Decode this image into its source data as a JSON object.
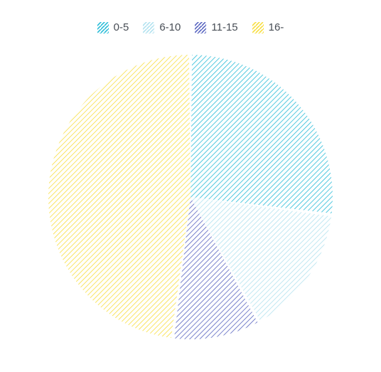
{
  "chart": {
    "type": "pie",
    "background_color": "#ffffff",
    "radius": 200,
    "slice_gap_deg": 1.2,
    "hatch": {
      "spacing": 5,
      "stroke_width": 1.6,
      "angle_deg": 45
    },
    "legend": {
      "font_size": 15,
      "text_color": "#474d55",
      "swatch_size": 16
    },
    "slices": [
      {
        "label": "0-5",
        "value": 27,
        "color": "#29bcd8"
      },
      {
        "label": "6-10",
        "value": 15,
        "color": "#b2e2ef"
      },
      {
        "label": "11-15",
        "value": 10,
        "color": "#5864c0"
      },
      {
        "label": "16-",
        "value": 48,
        "color": "#f8de3e"
      }
    ]
  }
}
